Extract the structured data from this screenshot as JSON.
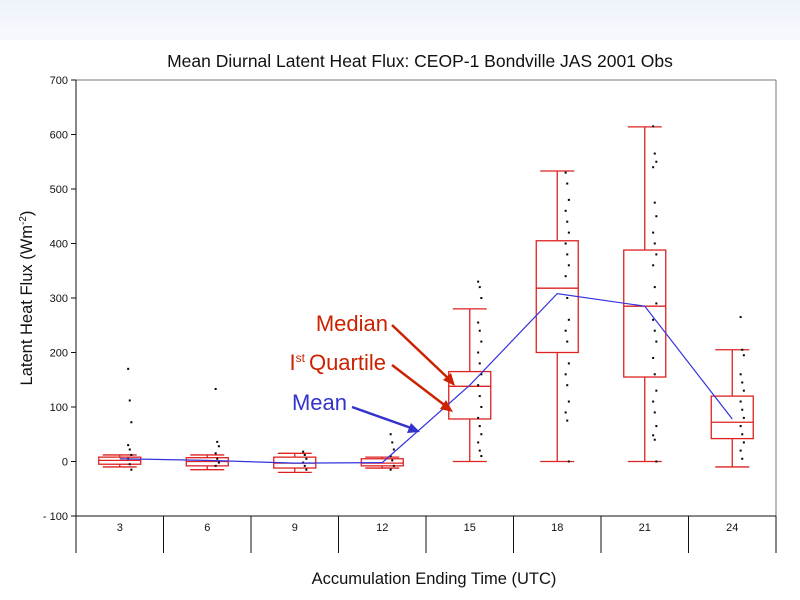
{
  "chart_data": {
    "type": "box",
    "title": "Mean Diurnal Latent Heat Flux: CEOP-1 Bondville JAS 2001 Obs",
    "xlabel": "Accumulation Ending Time (UTC)",
    "ylabel_main": "Latent Heat Flux (Wm",
    "ylabel_sup": "-2",
    "ylabel_end": ")",
    "ylim": [
      -100,
      700
    ],
    "yticks": [
      -100,
      0,
      100,
      200,
      300,
      400,
      500,
      600,
      700
    ],
    "ytick_labels": [
      "- 100",
      "0",
      "100",
      "200",
      "300",
      "400",
      "500",
      "600",
      "700"
    ],
    "categories": [
      "3",
      "6",
      "9",
      "12",
      "15",
      "18",
      "21",
      "24"
    ],
    "boxes": [
      {
        "min": -10,
        "q1": -5,
        "median": 2,
        "q3": 8,
        "max": 12
      },
      {
        "min": -15,
        "q1": -8,
        "median": 0,
        "q3": 7,
        "max": 12
      },
      {
        "min": -20,
        "q1": -12,
        "median": -3,
        "q3": 8,
        "max": 15
      },
      {
        "min": -12,
        "q1": -8,
        "median": -3,
        "q3": 5,
        "max": 8
      },
      {
        "min": 0,
        "q1": 78,
        "median": 138,
        "q3": 165,
        "max": 280
      },
      {
        "min": 0,
        "q1": 200,
        "median": 318,
        "q3": 405,
        "max": 533
      },
      {
        "min": 0,
        "q1": 155,
        "median": 285,
        "q3": 388,
        "max": 614
      },
      {
        "min": -10,
        "q1": 42,
        "median": 72,
        "q3": 120,
        "max": 205
      }
    ],
    "mean": [
      5,
      2,
      -3,
      -2,
      140,
      308,
      285,
      78
    ],
    "outliers": [
      [
        170,
        112,
        72,
        30,
        22,
        12,
        5,
        -5,
        -15
      ],
      [
        133,
        36,
        28,
        15,
        5,
        -2,
        -8
      ],
      [
        18,
        12,
        5,
        -2,
        -8,
        -15
      ],
      [
        50,
        35,
        22,
        10,
        2,
        -8,
        -15
      ],
      [
        330,
        320,
        300,
        255,
        240,
        220,
        200,
        180,
        160,
        140,
        120,
        100,
        80,
        65,
        50,
        35,
        20,
        10
      ],
      [
        530,
        510,
        480,
        460,
        440,
        420,
        400,
        380,
        360,
        340,
        300,
        260,
        240,
        220,
        180,
        160,
        140,
        110,
        90,
        75,
        0
      ],
      [
        615,
        565,
        550,
        540,
        475,
        450,
        420,
        400,
        380,
        360,
        320,
        290,
        260,
        240,
        220,
        190,
        160,
        130,
        110,
        90,
        65,
        48,
        40,
        0
      ],
      [
        265,
        205,
        195,
        160,
        145,
        130,
        110,
        95,
        80,
        65,
        50,
        35,
        20,
        5
      ]
    ],
    "annotations": {
      "median": "Median",
      "quartile_sup": "st",
      "quartile_text": "Quartile",
      "quartile_prefix": "I",
      "mean": "Mean"
    },
    "colors": {
      "box": "#dd2222",
      "mean_line": "#3333dd",
      "median_anno": "#cc2200",
      "mean_anno": "#3333cc"
    }
  }
}
